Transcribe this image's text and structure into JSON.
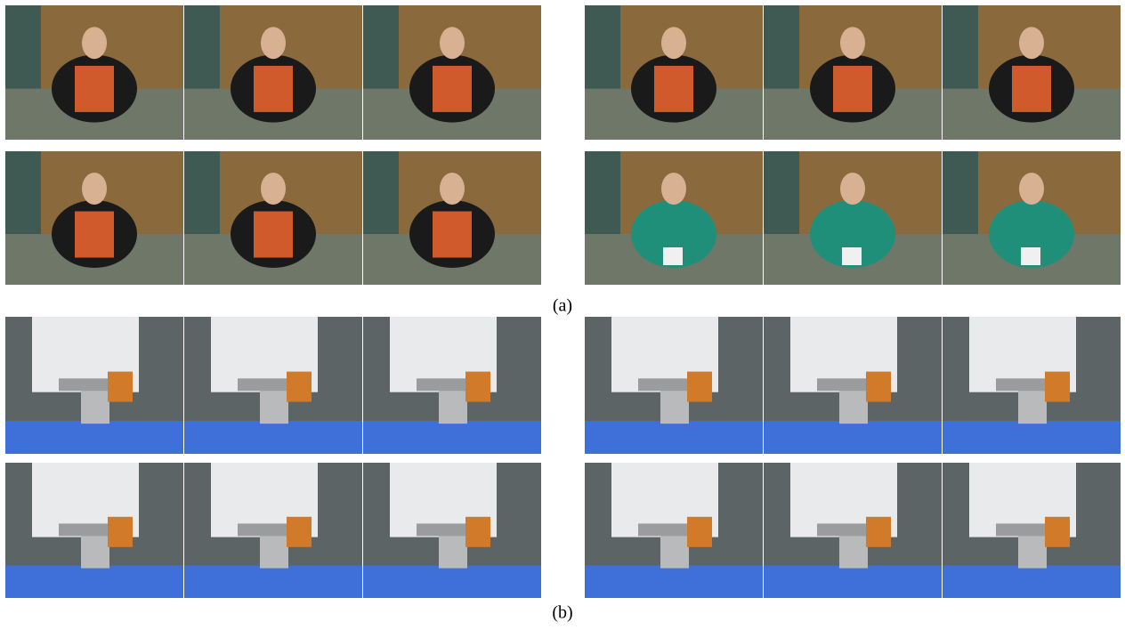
{
  "captions": {
    "a": "(a)",
    "b": "(b)"
  }
}
